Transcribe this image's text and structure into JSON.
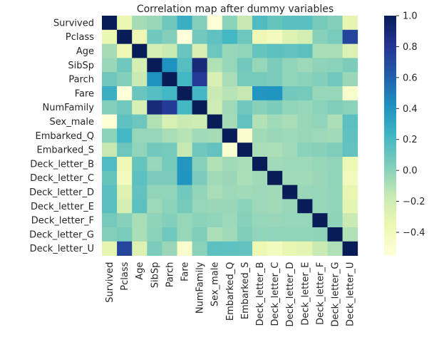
{
  "chart_data": {
    "type": "heatmap",
    "title": "Correlation map after dummy variables",
    "rows": [
      "Survived",
      "Pclass",
      "Age",
      "SibSp",
      "Parch",
      "Fare",
      "NumFamily",
      "Sex_male",
      "Embarked_Q",
      "Embarked_S",
      "Deck_letter_B",
      "Deck_letter_C",
      "Deck_letter_D",
      "Deck_letter_E",
      "Deck_letter_F",
      "Deck_letter_G",
      "Deck_letter_U"
    ],
    "columns": [
      "Survived",
      "Pclass",
      "Age",
      "SibSp",
      "Parch",
      "Fare",
      "NumFamily",
      "Sex_male",
      "Embarked_Q",
      "Embarked_S",
      "Deck_letter_B",
      "Deck_letter_C",
      "Deck_letter_D",
      "Deck_letter_E",
      "Deck_letter_F",
      "Deck_letter_G",
      "Deck_letter_U"
    ],
    "values": [
      [
        1.0,
        -0.34,
        -0.07,
        -0.04,
        0.08,
        0.26,
        0.02,
        -0.54,
        0.0,
        -0.16,
        0.18,
        0.11,
        0.15,
        0.15,
        0.06,
        0.02,
        -0.32
      ],
      [
        -0.34,
        1.0,
        -0.37,
        0.08,
        0.02,
        -0.55,
        0.07,
        0.13,
        0.22,
        0.09,
        -0.37,
        -0.42,
        -0.28,
        -0.23,
        0.01,
        0.05,
        0.73
      ],
      [
        -0.07,
        -0.37,
        1.0,
        -0.23,
        -0.18,
        0.1,
        -0.25,
        0.09,
        -0.03,
        -0.02,
        0.11,
        0.14,
        0.12,
        0.14,
        -0.08,
        -0.08,
        -0.27
      ],
      [
        -0.04,
        0.08,
        -0.23,
        1.0,
        0.41,
        0.16,
        0.89,
        -0.11,
        -0.03,
        0.07,
        -0.03,
        0.04,
        -0.02,
        -0.05,
        -0.01,
        0.0,
        0.04
      ],
      [
        0.08,
        0.02,
        -0.18,
        0.41,
        1.0,
        0.22,
        0.78,
        -0.25,
        -0.08,
        0.06,
        0.06,
        0.04,
        -0.02,
        0.0,
        0.02,
        0.07,
        -0.04
      ],
      [
        0.26,
        -0.55,
        0.1,
        0.16,
        0.22,
        1.0,
        0.22,
        -0.18,
        -0.12,
        -0.16,
        0.39,
        0.4,
        0.07,
        0.06,
        -0.03,
        -0.03,
        -0.48
      ],
      [
        0.02,
        0.07,
        -0.25,
        0.89,
        0.78,
        0.22,
        1.0,
        -0.2,
        -0.06,
        0.08,
        0.01,
        0.04,
        -0.02,
        -0.03,
        0.0,
        0.03,
        0.0
      ],
      [
        -0.54,
        0.13,
        0.09,
        -0.11,
        -0.25,
        -0.18,
        -0.2,
        1.0,
        -0.07,
        0.12,
        -0.11,
        -0.06,
        -0.08,
        -0.04,
        -0.02,
        -0.09,
        0.14
      ],
      [
        0.0,
        0.22,
        -0.03,
        -0.03,
        -0.08,
        -0.12,
        -0.06,
        -0.07,
        1.0,
        -0.5,
        -0.06,
        -0.04,
        -0.05,
        -0.04,
        -0.05,
        -0.06,
        0.13
      ],
      [
        -0.16,
        0.09,
        -0.02,
        0.07,
        0.06,
        -0.16,
        0.08,
        0.12,
        -0.5,
        1.0,
        -0.08,
        -0.09,
        -0.06,
        0.0,
        0.01,
        0.03,
        0.12
      ],
      [
        0.18,
        -0.37,
        0.11,
        -0.03,
        0.06,
        0.39,
        0.01,
        -0.11,
        -0.06,
        -0.08,
        1.0,
        -0.06,
        -0.05,
        -0.05,
        -0.03,
        -0.02,
        -0.36
      ],
      [
        0.11,
        -0.42,
        0.14,
        0.04,
        0.04,
        0.4,
        0.04,
        -0.06,
        -0.04,
        -0.09,
        -0.06,
        1.0,
        -0.06,
        -0.06,
        -0.04,
        -0.02,
        -0.42
      ],
      [
        0.15,
        -0.28,
        0.12,
        -0.02,
        -0.02,
        0.07,
        -0.02,
        -0.08,
        -0.05,
        -0.06,
        -0.05,
        -0.06,
        1.0,
        -0.04,
        -0.03,
        -0.02,
        -0.33
      ],
      [
        0.15,
        -0.23,
        0.14,
        -0.05,
        0.0,
        0.06,
        -0.03,
        -0.04,
        -0.04,
        0.0,
        -0.05,
        -0.06,
        -0.04,
        1.0,
        -0.03,
        -0.02,
        -0.31
      ],
      [
        0.06,
        0.01,
        -0.08,
        -0.01,
        0.02,
        -0.03,
        0.0,
        -0.02,
        -0.05,
        0.01,
        -0.03,
        -0.04,
        -0.03,
        -0.03,
        1.0,
        -0.01,
        -0.18
      ],
      [
        0.02,
        0.05,
        -0.08,
        0.0,
        0.07,
        -0.03,
        0.03,
        -0.09,
        -0.06,
        0.03,
        -0.02,
        -0.02,
        -0.02,
        -0.02,
        -0.01,
        1.0,
        -0.1
      ],
      [
        -0.32,
        0.73,
        -0.27,
        0.04,
        -0.04,
        -0.48,
        0.0,
        0.14,
        0.13,
        0.12,
        -0.36,
        -0.42,
        -0.33,
        -0.31,
        -0.18,
        -0.1,
        1.0
      ]
    ],
    "colorbar": {
      "vmin": -0.55,
      "vmax": 1.0,
      "ticks": [
        1.0,
        0.8,
        0.6,
        0.4,
        0.2,
        0.0,
        -0.2,
        -0.4
      ],
      "tick_labels": [
        "1.0",
        "0.8",
        "0.6",
        "0.4",
        "0.2",
        "0.0",
        "−0.2",
        "−0.4"
      ],
      "colormap": "YlGnBu",
      "colors": [
        "#ffffd9",
        "#edf8b1",
        "#c7e9b4",
        "#7fcdbb",
        "#41b6c4",
        "#1d91c0",
        "#225ea8",
        "#253494",
        "#081d58"
      ]
    },
    "grid": false
  }
}
